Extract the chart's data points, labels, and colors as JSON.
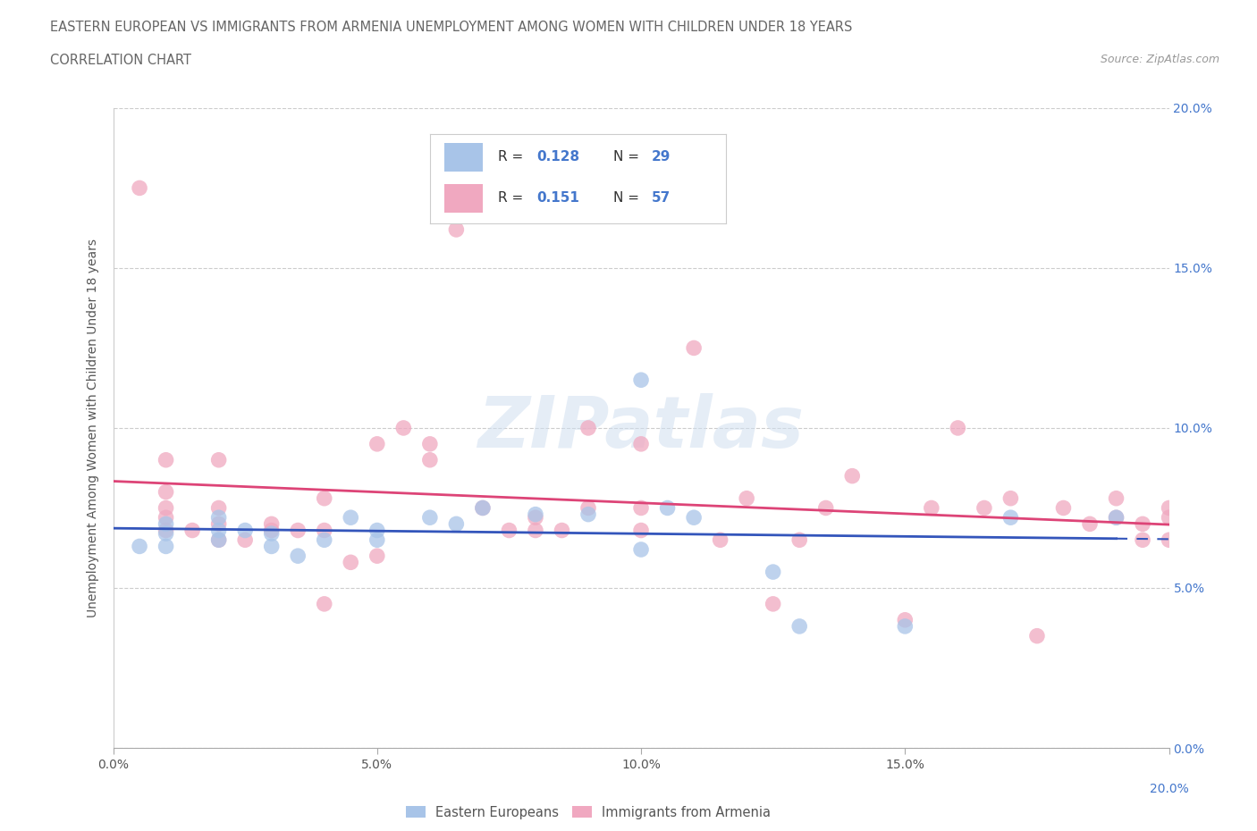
{
  "title_line1": "EASTERN EUROPEAN VS IMMIGRANTS FROM ARMENIA UNEMPLOYMENT AMONG WOMEN WITH CHILDREN UNDER 18 YEARS",
  "title_line2": "CORRELATION CHART",
  "source": "Source: ZipAtlas.com",
  "ylabel": "Unemployment Among Women with Children Under 18 years",
  "xmin": 0.0,
  "xmax": 0.2,
  "ymin": 0.0,
  "ymax": 0.2,
  "yticks": [
    0.0,
    0.05,
    0.1,
    0.15,
    0.2
  ],
  "ytick_labels": [
    "0.0%",
    "5.0%",
    "10.0%",
    "15.0%",
    "20.0%"
  ],
  "xticks": [
    0.0,
    0.05,
    0.1,
    0.15,
    0.2
  ],
  "xtick_labels": [
    "0.0%",
    "5.0%",
    "10.0%",
    "15.0%",
    "20.0%"
  ],
  "R_eastern": 0.128,
  "N_eastern": 29,
  "R_armenia": 0.151,
  "N_armenia": 57,
  "eastern_color": "#a8c4e8",
  "armenia_color": "#f0a8c0",
  "eastern_line_color": "#3355bb",
  "armenia_line_color": "#dd4477",
  "watermark": "ZIPatlas",
  "eastern_x": [
    0.005,
    0.01,
    0.01,
    0.01,
    0.02,
    0.02,
    0.02,
    0.025,
    0.03,
    0.03,
    0.035,
    0.04,
    0.045,
    0.05,
    0.05,
    0.06,
    0.065,
    0.07,
    0.08,
    0.09,
    0.1,
    0.1,
    0.105,
    0.11,
    0.125,
    0.13,
    0.15,
    0.17,
    0.19
  ],
  "eastern_y": [
    0.063,
    0.063,
    0.067,
    0.07,
    0.065,
    0.068,
    0.072,
    0.068,
    0.063,
    0.067,
    0.06,
    0.065,
    0.072,
    0.068,
    0.065,
    0.072,
    0.07,
    0.075,
    0.073,
    0.073,
    0.115,
    0.062,
    0.075,
    0.072,
    0.055,
    0.038,
    0.038,
    0.072,
    0.072
  ],
  "armenia_x": [
    0.005,
    0.01,
    0.01,
    0.01,
    0.01,
    0.01,
    0.015,
    0.02,
    0.02,
    0.02,
    0.02,
    0.025,
    0.03,
    0.03,
    0.035,
    0.04,
    0.04,
    0.04,
    0.045,
    0.05,
    0.05,
    0.055,
    0.06,
    0.06,
    0.065,
    0.07,
    0.075,
    0.08,
    0.08,
    0.085,
    0.09,
    0.09,
    0.1,
    0.1,
    0.1,
    0.11,
    0.115,
    0.12,
    0.125,
    0.13,
    0.135,
    0.14,
    0.15,
    0.155,
    0.16,
    0.165,
    0.17,
    0.175,
    0.18,
    0.185,
    0.19,
    0.19,
    0.195,
    0.195,
    0.2,
    0.2,
    0.2
  ],
  "armenia_y": [
    0.175,
    0.068,
    0.072,
    0.08,
    0.09,
    0.075,
    0.068,
    0.065,
    0.07,
    0.09,
    0.075,
    0.065,
    0.068,
    0.07,
    0.068,
    0.045,
    0.068,
    0.078,
    0.058,
    0.06,
    0.095,
    0.1,
    0.095,
    0.09,
    0.162,
    0.075,
    0.068,
    0.068,
    0.072,
    0.068,
    0.1,
    0.075,
    0.075,
    0.095,
    0.068,
    0.125,
    0.065,
    0.078,
    0.045,
    0.065,
    0.075,
    0.085,
    0.04,
    0.075,
    0.1,
    0.075,
    0.078,
    0.035,
    0.075,
    0.07,
    0.072,
    0.078,
    0.065,
    0.07,
    0.065,
    0.072,
    0.075
  ]
}
